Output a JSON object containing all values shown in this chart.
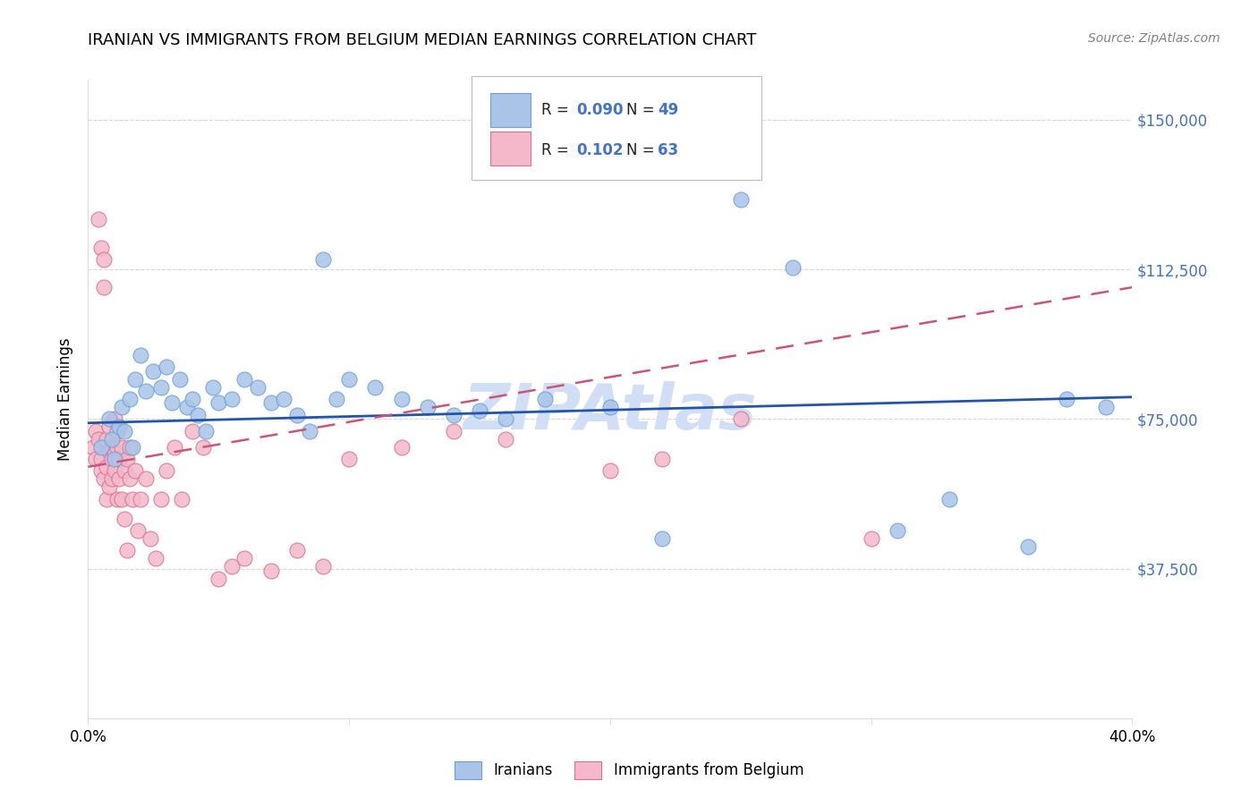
{
  "title": "IRANIAN VS IMMIGRANTS FROM BELGIUM MEDIAN EARNINGS CORRELATION CHART",
  "source": "Source: ZipAtlas.com",
  "ylabel": "Median Earnings",
  "yticks": [
    0,
    37500,
    75000,
    112500,
    150000
  ],
  "ytick_labels": [
    "",
    "$37,500",
    "$75,000",
    "$112,500",
    "$150,000"
  ],
  "xmin": 0.0,
  "xmax": 0.4,
  "ymin": 0,
  "ymax": 160000,
  "legend_R_color": "#4472c4",
  "legend_N_color": "#333333",
  "iranians_color": "#aac4e8",
  "iranians_edge": "#6a9fd8",
  "belgium_color": "#f4b8ca",
  "belgium_edge": "#d97090",
  "trend_blue_color": "#2255aa",
  "trend_pink_color": "#cc5577",
  "trend_blue_y0": 74000,
  "trend_blue_y1": 80500,
  "trend_pink_y0": 63000,
  "trend_pink_y1": 108000,
  "watermark": "ZIPAtlas",
  "watermark_color": "#d0dff5",
  "background": "#ffffff",
  "grid_color": "#cccccc",
  "iranians_x": [
    0.005,
    0.008,
    0.009,
    0.01,
    0.012,
    0.013,
    0.014,
    0.016,
    0.017,
    0.018,
    0.02,
    0.022,
    0.025,
    0.028,
    0.03,
    0.032,
    0.035,
    0.038,
    0.04,
    0.042,
    0.045,
    0.048,
    0.05,
    0.055,
    0.06,
    0.065,
    0.07,
    0.075,
    0.08,
    0.085,
    0.09,
    0.095,
    0.1,
    0.11,
    0.12,
    0.13,
    0.14,
    0.15,
    0.16,
    0.175,
    0.2,
    0.22,
    0.25,
    0.27,
    0.31,
    0.33,
    0.36,
    0.375,
    0.39
  ],
  "iranians_y": [
    68000,
    75000,
    70000,
    65000,
    73000,
    78000,
    72000,
    80000,
    68000,
    85000,
    91000,
    82000,
    87000,
    83000,
    88000,
    79000,
    85000,
    78000,
    80000,
    76000,
    72000,
    83000,
    79000,
    80000,
    85000,
    83000,
    79000,
    80000,
    76000,
    72000,
    115000,
    80000,
    85000,
    83000,
    80000,
    78000,
    76000,
    77000,
    75000,
    80000,
    78000,
    45000,
    130000,
    113000,
    47000,
    55000,
    43000,
    80000,
    78000
  ],
  "belgium_x": [
    0.002,
    0.003,
    0.003,
    0.004,
    0.004,
    0.005,
    0.005,
    0.005,
    0.006,
    0.006,
    0.006,
    0.007,
    0.007,
    0.007,
    0.008,
    0.008,
    0.008,
    0.009,
    0.009,
    0.009,
    0.01,
    0.01,
    0.01,
    0.011,
    0.011,
    0.011,
    0.012,
    0.012,
    0.013,
    0.013,
    0.014,
    0.014,
    0.015,
    0.015,
    0.016,
    0.016,
    0.017,
    0.018,
    0.019,
    0.02,
    0.022,
    0.024,
    0.026,
    0.028,
    0.03,
    0.033,
    0.036,
    0.04,
    0.044,
    0.05,
    0.055,
    0.06,
    0.07,
    0.08,
    0.09,
    0.1,
    0.12,
    0.14,
    0.16,
    0.2,
    0.22,
    0.25,
    0.3
  ],
  "belgium_y": [
    68000,
    65000,
    72000,
    70000,
    125000,
    118000,
    65000,
    62000,
    115000,
    108000,
    60000,
    63000,
    70000,
    55000,
    67000,
    73000,
    58000,
    65000,
    68000,
    60000,
    62000,
    75000,
    66000,
    68000,
    72000,
    55000,
    65000,
    60000,
    68000,
    55000,
    62000,
    50000,
    65000,
    42000,
    68000,
    60000,
    55000,
    62000,
    47000,
    55000,
    60000,
    45000,
    40000,
    55000,
    62000,
    68000,
    55000,
    72000,
    68000,
    35000,
    38000,
    40000,
    37000,
    42000,
    38000,
    65000,
    68000,
    72000,
    70000,
    62000,
    65000,
    75000,
    45000
  ]
}
